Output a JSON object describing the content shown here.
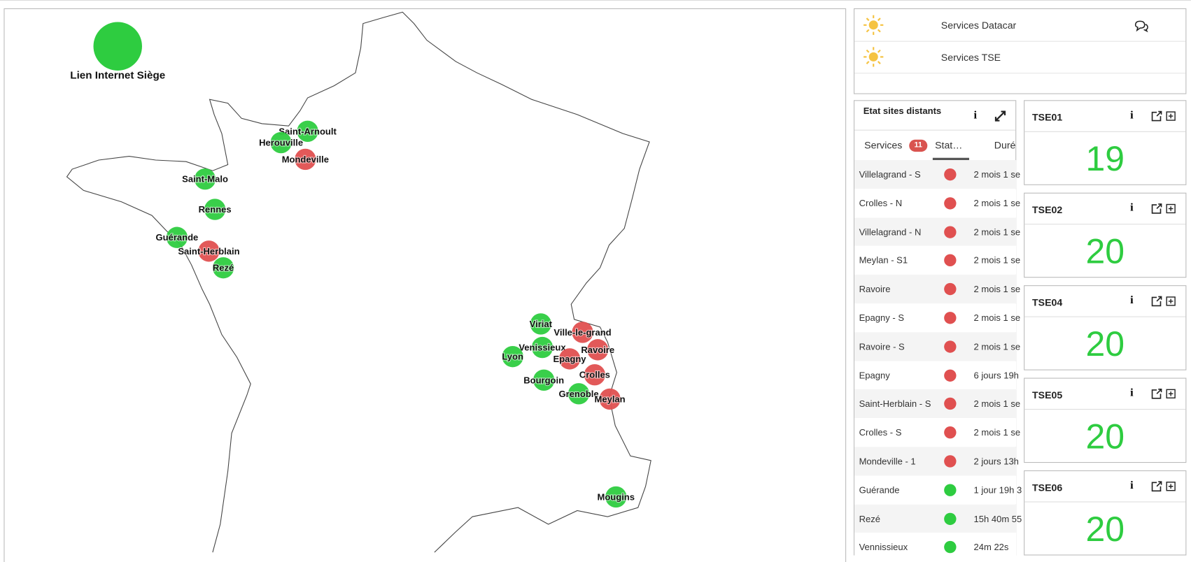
{
  "map": {
    "legend_label": "Lien Internet Siège",
    "legend_color": "#2ecc40",
    "sites": [
      {
        "name": "Saint-Arnoult",
        "color": "#2ecc40"
      },
      {
        "name": "Herouville",
        "color": "#2ecc40"
      },
      {
        "name": "Mondeville",
        "color": "#e05050"
      },
      {
        "name": "Saint-Malo",
        "color": "#2ecc40"
      },
      {
        "name": "Rennes",
        "color": "#2ecc40"
      },
      {
        "name": "Guérande",
        "color": "#2ecc40"
      },
      {
        "name": "Saint-Herblain",
        "color": "#e05050"
      },
      {
        "name": "Rezé",
        "color": "#2ecc40"
      },
      {
        "name": "Viriat",
        "color": "#2ecc40"
      },
      {
        "name": "Ville-le-grand",
        "color": "#e05050"
      },
      {
        "name": "Venissieux",
        "color": "#2ecc40"
      },
      {
        "name": "Ravoire",
        "color": "#e05050"
      },
      {
        "name": "Lyon",
        "color": "#2ecc40"
      },
      {
        "name": "Epagny",
        "color": "#e05050"
      },
      {
        "name": "Crolles",
        "color": "#e05050"
      },
      {
        "name": "Bourgoin",
        "color": "#2ecc40"
      },
      {
        "name": "Grenoble",
        "color": "#2ecc40"
      },
      {
        "name": "Meylan",
        "color": "#e05050"
      },
      {
        "name": "Mougins",
        "color": "#2ecc40"
      }
    ]
  },
  "services": [
    {
      "name": "Services Datacar"
    },
    {
      "name": "Services TSE"
    }
  ],
  "remote_sites": {
    "title": "Etat sites distants",
    "tabs": [
      "Services",
      "Stat…",
      "Duré"
    ],
    "badge": 11,
    "rows": [
      {
        "name": "Villelagrand - S",
        "color": "#e05050",
        "duration": "2 mois 1 se"
      },
      {
        "name": "Crolles - N",
        "color": "#e05050",
        "duration": "2 mois 1 se"
      },
      {
        "name": "Villelagrand - N",
        "color": "#e05050",
        "duration": "2 mois 1 se"
      },
      {
        "name": "Meylan - S1",
        "color": "#e05050",
        "duration": "2 mois 1 se"
      },
      {
        "name": "Ravoire",
        "color": "#e05050",
        "duration": "2 mois 1 se"
      },
      {
        "name": "Epagny - S",
        "color": "#e05050",
        "duration": "2 mois 1 se"
      },
      {
        "name": "Ravoire - S",
        "color": "#e05050",
        "duration": "2 mois 1 se"
      },
      {
        "name": "Epagny",
        "color": "#e05050",
        "duration": "6 jours 19h"
      },
      {
        "name": "Saint-Herblain - S",
        "color": "#e05050",
        "duration": "2 mois 1 se"
      },
      {
        "name": "Crolles - S",
        "color": "#e05050",
        "duration": "2 mois 1 se"
      },
      {
        "name": "Mondeville - 1",
        "color": "#e05050",
        "duration": "2 jours 13h"
      },
      {
        "name": "Guérande",
        "color": "#2ecc40",
        "duration": "1 jour 19h 3"
      },
      {
        "name": "Rezé",
        "color": "#2ecc40",
        "duration": "15h 40m 55"
      },
      {
        "name": "Vennissieux",
        "color": "#2ecc40",
        "duration": "24m 22s"
      }
    ]
  },
  "tse": [
    {
      "name": "TSE01",
      "value": 19
    },
    {
      "name": "TSE02",
      "value": 20
    },
    {
      "name": "TSE04",
      "value": 20
    },
    {
      "name": "TSE05",
      "value": 20
    },
    {
      "name": "TSE06",
      "value": 20
    }
  ]
}
